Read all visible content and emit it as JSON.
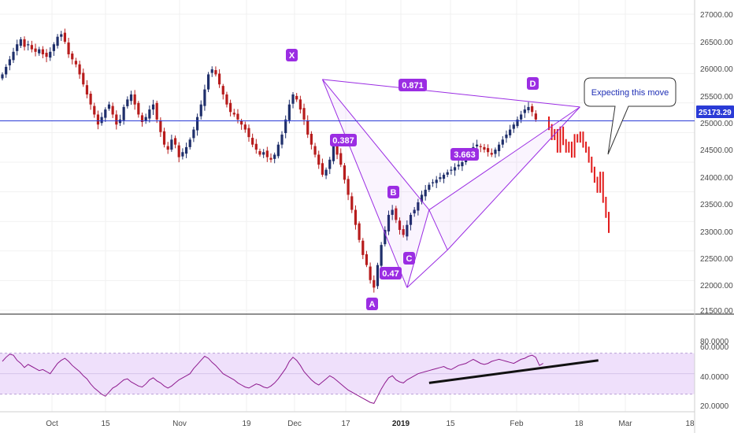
{
  "chart_data": [
    {
      "type": "candlestick",
      "panel": "price",
      "pattern": "Bearish Cypher harmonic",
      "y_ticks": [
        "27000.00",
        "26500.00",
        "26000.00",
        "25500.00",
        "25000.00",
        "24500.00",
        "24000.00",
        "23500.00",
        "23000.00",
        "22500.00",
        "22000.00",
        "21500.00"
      ],
      "ylim": [
        21400,
        27300
      ],
      "x_ticks": [
        "Oct",
        "15",
        "Nov",
        "19",
        "Dec",
        "17",
        "2019",
        "15",
        "Feb",
        "18",
        "Mar",
        "18"
      ],
      "current_price": {
        "label": "25173.29",
        "value": 25173.29,
        "color": "#2a3bd6"
      },
      "up_color": "#1f2f6b",
      "down_color": "#b71c1c",
      "projection_color": "#e21b1b",
      "closes": [
        26100,
        26250,
        26400,
        26550,
        26700,
        26800,
        26650,
        26700,
        26600,
        26550,
        26600,
        26500,
        26450,
        26550,
        26700,
        26850,
        26900,
        26750,
        26500,
        26400,
        26300,
        26100,
        25900,
        25700,
        25500,
        25300,
        25100,
        25250,
        25400,
        25500,
        25300,
        25100,
        25200,
        25450,
        25600,
        25700,
        25500,
        25300,
        25150,
        25250,
        25400,
        25500,
        25200,
        24950,
        24700,
        24600,
        24800,
        24700,
        24450,
        24550,
        24650,
        24800,
        25000,
        25250,
        25500,
        25800,
        26100,
        26200,
        26100,
        25900,
        25700,
        25500,
        25350,
        25300,
        25200,
        25100,
        25000,
        24850,
        24700,
        24600,
        24500,
        24550,
        24450,
        24400,
        24500,
        24700,
        24900,
        25200,
        25500,
        25700,
        25600,
        25400,
        25200,
        24900,
        24700,
        24500,
        24300,
        24100,
        24200,
        24400,
        24700,
        24500,
        24300,
        24000,
        23700,
        23400,
        23100,
        22800,
        22500,
        22300,
        22000,
        21850,
        22300,
        22700,
        23000,
        23300,
        23400,
        23200,
        23000,
        22900,
        23100,
        23300,
        23400,
        23550,
        23700,
        23800,
        23900,
        23950,
        24000,
        24050,
        24100,
        24150,
        24200,
        24250,
        24300,
        24350,
        24450,
        24550,
        24650,
        24700,
        24650,
        24600,
        24550,
        24500,
        24600,
        24700,
        24800,
        24900,
        25000,
        25100,
        25200,
        25300,
        25400,
        25450,
        25350,
        25200
      ],
      "projection": [
        25050,
        24850,
        24950,
        24600,
        25000,
        24750,
        24600,
        24700,
        24500,
        24850,
        24800,
        24900,
        24700,
        24600,
        24400,
        24200,
        24000,
        23800,
        24100,
        23600,
        23300,
        23000
      ],
      "annotations": {
        "points": [
          {
            "label": "X",
            "value": 26000,
            "idx": 87
          },
          {
            "label": "A",
            "value": 21850,
            "idx": 110
          },
          {
            "label": "B",
            "value": 23400,
            "idx": 116
          },
          {
            "label": "C",
            "value": 22600,
            "idx": 121
          },
          {
            "label": "D",
            "value": 25450,
            "idx": 157
          }
        ],
        "ratios": [
          "0.871",
          "0.387",
          "0.47",
          "3.663"
        ],
        "callout": "Expecting this move"
      }
    },
    {
      "type": "line",
      "panel": "oscillator",
      "y_ticks": [
        "80.0000",
        "60.0000",
        "40.0000",
        "20.0000"
      ],
      "ylim": [
        19,
        82
      ],
      "band": [
        30,
        70
      ],
      "mid": 50,
      "color": "#8e1a8e",
      "band_color": "#efe0fb",
      "values": [
        62,
        66,
        69,
        68,
        63,
        60,
        56,
        59,
        57,
        55,
        53,
        54,
        52,
        50,
        55,
        60,
        63,
        65,
        62,
        58,
        55,
        52,
        48,
        45,
        40,
        36,
        33,
        30,
        28,
        32,
        36,
        38,
        41,
        44,
        45,
        42,
        40,
        38,
        37,
        40,
        44,
        46,
        43,
        41,
        38,
        36,
        38,
        41,
        44,
        46,
        48,
        50,
        55,
        59,
        63,
        67,
        65,
        61,
        58,
        54,
        50,
        48,
        46,
        44,
        41,
        39,
        37,
        36,
        38,
        40,
        39,
        37,
        36,
        38,
        41,
        45,
        50,
        55,
        62,
        66,
        63,
        58,
        52,
        48,
        44,
        41,
        39,
        42,
        45,
        48,
        46,
        43,
        40,
        37,
        34,
        32,
        30,
        28,
        26,
        24,
        22,
        21,
        28,
        35,
        41,
        46,
        48,
        44,
        42,
        41,
        44,
        46,
        48,
        50,
        51,
        52,
        53,
        54,
        55,
        56,
        57,
        55,
        54,
        56,
        58,
        59,
        60,
        62,
        64,
        62,
        60,
        59,
        60,
        62,
        63,
        64,
        63,
        62,
        61,
        60,
        62,
        64,
        65,
        67,
        68,
        66,
        58,
        60
      ],
      "trendline": {
        "from_idx": 116,
        "from_value": 41,
        "to_idx": 162,
        "to_value": 63
      }
    }
  ]
}
